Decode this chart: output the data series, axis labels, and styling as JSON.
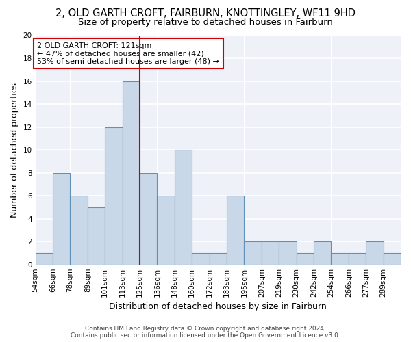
{
  "title": "2, OLD GARTH CROFT, FAIRBURN, KNOTTINGLEY, WF11 9HD",
  "subtitle": "Size of property relative to detached houses in Fairburn",
  "xlabel": "Distribution of detached houses by size in Fairburn",
  "ylabel": "Number of detached properties",
  "footer_line1": "Contains HM Land Registry data © Crown copyright and database right 2024.",
  "footer_line2": "Contains public sector information licensed under the Open Government Licence v3.0.",
  "annotation_line1": "2 OLD GARTH CROFT: 121sqm",
  "annotation_line2": "← 47% of detached houses are smaller (42)",
  "annotation_line3": "53% of semi-detached houses are larger (48) →",
  "bin_labels": [
    "54sqm",
    "66sqm",
    "78sqm",
    "89sqm",
    "101sqm",
    "113sqm",
    "125sqm",
    "136sqm",
    "148sqm",
    "160sqm",
    "172sqm",
    "183sqm",
    "195sqm",
    "207sqm",
    "219sqm",
    "230sqm",
    "242sqm",
    "254sqm",
    "266sqm",
    "277sqm",
    "289sqm"
  ],
  "bar_values": [
    1,
    8,
    6,
    5,
    12,
    16,
    8,
    6,
    10,
    1,
    1,
    6,
    2,
    2,
    2,
    1,
    2,
    1,
    1,
    2,
    1
  ],
  "bar_color": "#c8d8e8",
  "bar_edge_color": "#6090b8",
  "background_color": "#eef2f8",
  "grid_color": "#ffffff",
  "red_line_color": "#cc0000",
  "red_line_bin_index": 6,
  "ylim": [
    0,
    20
  ],
  "yticks": [
    0,
    2,
    4,
    6,
    8,
    10,
    12,
    14,
    16,
    18,
    20
  ],
  "annotation_box_color": "#ffffff",
  "annotation_box_edge_color": "#cc0000",
  "title_fontsize": 10.5,
  "subtitle_fontsize": 9.5,
  "xlabel_fontsize": 9,
  "ylabel_fontsize": 9,
  "tick_fontsize": 7.5,
  "annotation_fontsize": 8,
  "footer_fontsize": 6.5
}
